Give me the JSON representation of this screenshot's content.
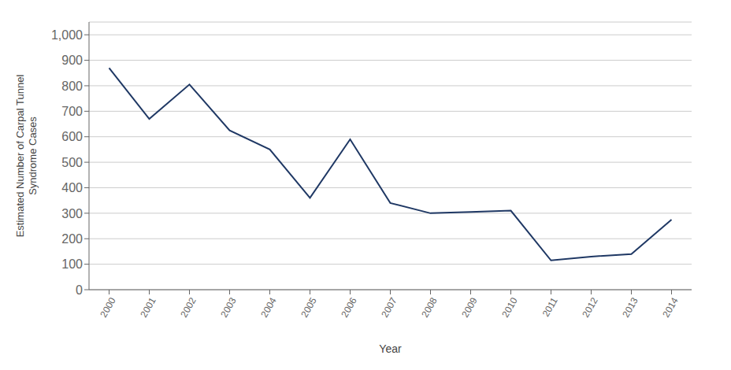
{
  "chart_data": {
    "type": "line",
    "x": [
      2000,
      2001,
      2002,
      2003,
      2004,
      2005,
      2006,
      2007,
      2008,
      2009,
      2010,
      2011,
      2012,
      2013,
      2014
    ],
    "values": [
      870,
      670,
      805,
      625,
      550,
      360,
      590,
      340,
      300,
      305,
      310,
      115,
      130,
      140,
      275
    ],
    "color": "#1F3864",
    "xlabel": "Year",
    "ylabel": "Estimated Number of Carpal Tunnel\nSyndrome Cases",
    "xlim": [
      1999.5,
      2014.5
    ],
    "xticks": [
      2000,
      2001,
      2002,
      2003,
      2004,
      2005,
      2006,
      2007,
      2008,
      2009,
      2010,
      2011,
      2012,
      2013,
      2014
    ],
    "ylim": [
      0,
      1050
    ],
    "yticks": [
      0,
      100,
      200,
      300,
      400,
      500,
      600,
      700,
      800,
      900,
      {
        "value": 1000,
        "label": "1,000"
      }
    ],
    "grid": true
  }
}
